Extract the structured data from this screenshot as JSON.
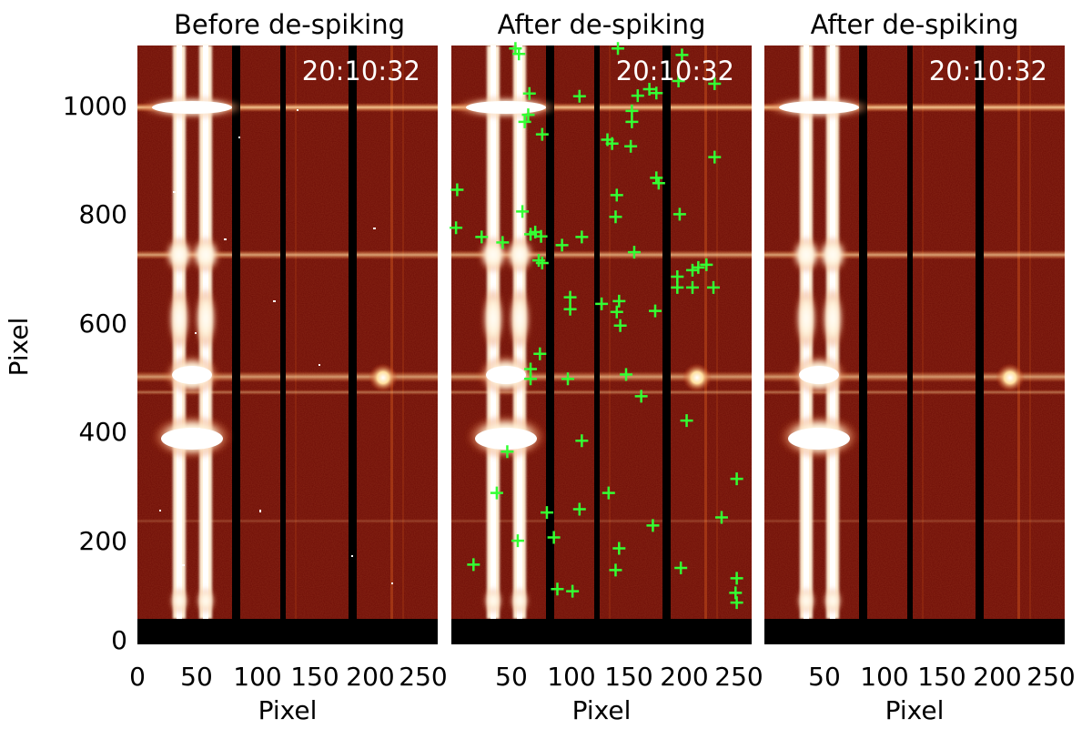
{
  "figure": {
    "y_axis_label": "Pixel",
    "x_axis_label": "Pixel",
    "y_ticks": [
      "0",
      "200",
      "400",
      "600",
      "800",
      "1000"
    ],
    "x_ticks_first": [
      "0",
      "50",
      "100",
      "150",
      "200",
      "250"
    ],
    "x_ticks_other": [
      "50",
      "100",
      "150",
      "200",
      "250"
    ],
    "panels": [
      {
        "title": "Before de-spiking",
        "timestamp": "20:10:32"
      },
      {
        "title": "After de-spiking",
        "timestamp": "20:10:32"
      },
      {
        "title": "After de-spiking",
        "timestamp": "20:10:32"
      }
    ],
    "colors": {
      "background_red": "#6e0d06",
      "bright": "#fff7e6",
      "marker": "#33ff33",
      "gap": "#000000"
    },
    "marker_symbol": "plus-icon",
    "spike_markers": [
      [
        55,
        1080
      ],
      [
        58,
        1070
      ],
      [
        143,
        1080
      ],
      [
        198,
        1068
      ],
      [
        67,
        997
      ],
      [
        110,
        992
      ],
      [
        160,
        993
      ],
      [
        170,
        1005
      ],
      [
        176,
        998
      ],
      [
        226,
        1015
      ],
      [
        195,
        1020
      ],
      [
        155,
        965
      ],
      [
        66,
        958
      ],
      [
        63,
        945
      ],
      [
        155,
        945
      ],
      [
        78,
        922
      ],
      [
        134,
        912
      ],
      [
        138,
        905
      ],
      [
        154,
        900
      ],
      [
        226,
        880
      ],
      [
        176,
        842
      ],
      [
        178,
        832
      ],
      [
        5,
        820
      ],
      [
        61,
        780
      ],
      [
        142,
        810
      ],
      [
        141,
        770
      ],
      [
        196,
        775
      ],
      [
        4,
        750
      ],
      [
        26,
        733
      ],
      [
        44,
        723
      ],
      [
        72,
        742
      ],
      [
        68,
        738
      ],
      [
        77,
        734
      ],
      [
        112,
        733
      ],
      [
        95,
        718
      ],
      [
        157,
        705
      ],
      [
        75,
        690
      ],
      [
        78,
        685
      ],
      [
        194,
        660
      ],
      [
        207,
        672
      ],
      [
        212,
        677
      ],
      [
        219,
        682
      ],
      [
        194,
        640
      ],
      [
        207,
        640
      ],
      [
        225,
        640
      ],
      [
        102,
        622
      ],
      [
        102,
        600
      ],
      [
        129,
        610
      ],
      [
        144,
        615
      ],
      [
        142,
        595
      ],
      [
        175,
        597
      ],
      [
        145,
        570
      ],
      [
        76,
        518
      ],
      [
        68,
        490
      ],
      [
        68,
        472
      ],
      [
        100,
        472
      ],
      [
        150,
        480
      ],
      [
        163,
        440
      ],
      [
        202,
        395
      ],
      [
        48,
        338
      ],
      [
        112,
        358
      ],
      [
        245,
        288
      ],
      [
        39,
        262
      ],
      [
        135,
        262
      ],
      [
        110,
        232
      ],
      [
        82,
        226
      ],
      [
        232,
        217
      ],
      [
        173,
        202
      ],
      [
        88,
        180
      ],
      [
        57,
        174
      ],
      [
        144,
        160
      ],
      [
        19,
        130
      ],
      [
        141,
        120
      ],
      [
        197,
        124
      ],
      [
        91,
        85
      ],
      [
        104,
        81
      ],
      [
        245,
        105
      ],
      [
        244,
        78
      ],
      [
        245,
        60
      ]
    ]
  }
}
